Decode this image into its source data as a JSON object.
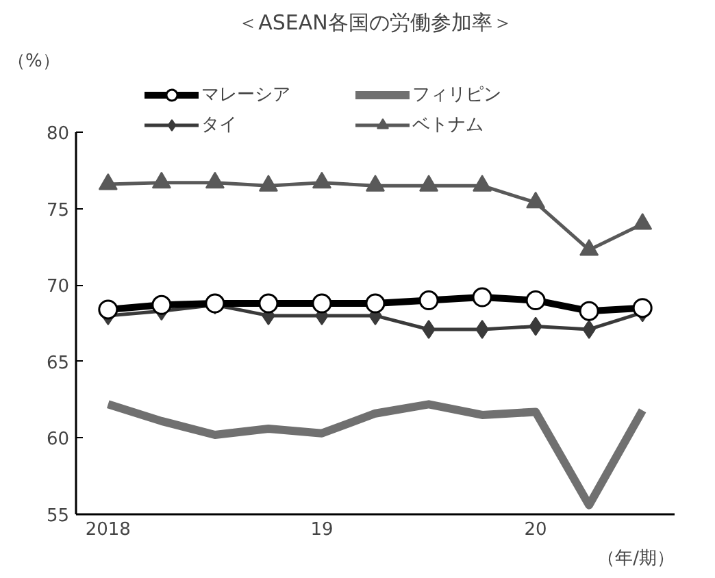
{
  "chart_data": {
    "type": "line",
    "title": "＜ASEAN各国の労働参加率＞",
    "ylabel": "（%）",
    "xlabel": "（年/期）",
    "categories": [
      "2018",
      null,
      null,
      null,
      "19",
      null,
      null,
      null,
      "20",
      null,
      null
    ],
    "ylim": [
      55,
      80
    ],
    "yticks": [
      55,
      60,
      65,
      70,
      75,
      80
    ],
    "grid": false,
    "legend": "top",
    "series": [
      {
        "name": "マレーシア",
        "color": "#000000",
        "marker": "circle",
        "values": [
          68.4,
          68.7,
          68.8,
          68.8,
          68.8,
          68.8,
          69.0,
          69.2,
          69.0,
          68.3,
          68.5
        ]
      },
      {
        "name": "フィリピン",
        "color": "#707070",
        "marker": "none",
        "values": [
          62.2,
          61.1,
          60.2,
          60.6,
          60.3,
          61.6,
          62.2,
          61.5,
          61.7,
          55.6,
          61.8
        ]
      },
      {
        "name": "タイ",
        "color": "#3a3a3a",
        "marker": "diamond",
        "values": [
          68.0,
          68.3,
          68.7,
          68.0,
          68.0,
          68.0,
          67.1,
          67.1,
          67.3,
          67.1,
          68.2
        ]
      },
      {
        "name": "ベトナム",
        "color": "#595959",
        "marker": "triangle",
        "values": [
          76.6,
          76.7,
          76.7,
          76.5,
          76.7,
          76.5,
          76.5,
          76.5,
          75.4,
          72.3,
          74.0
        ]
      }
    ]
  }
}
